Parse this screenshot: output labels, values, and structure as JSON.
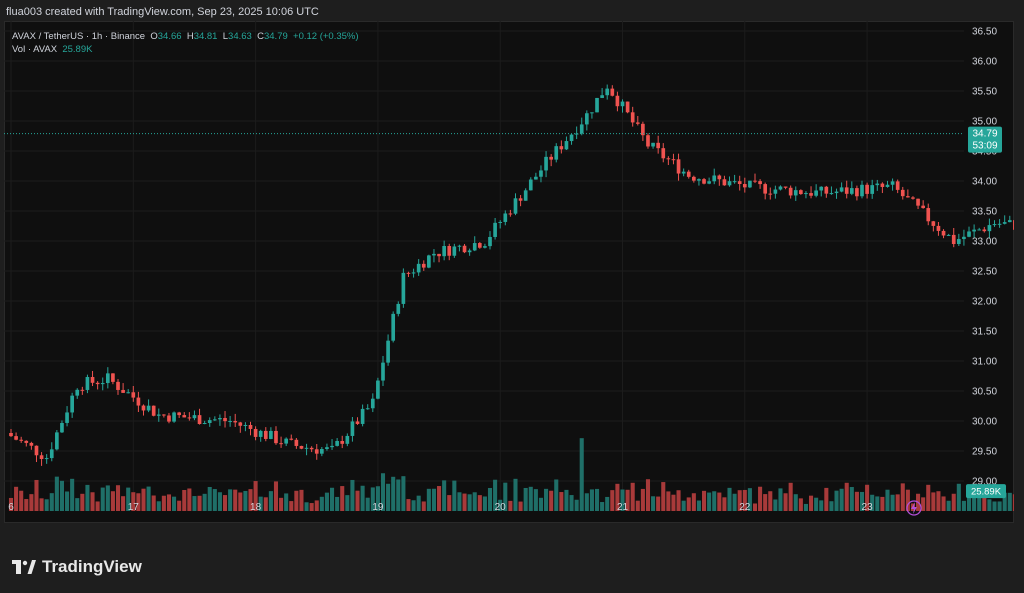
{
  "header": {
    "text": "flua003 created with TradingView.com, Sep 23, 2025 10:06 UTC"
  },
  "legend": {
    "symbol": "AVAX / TetherUS · 1h · Binance",
    "o_label": "O",
    "o": "34.66",
    "h_label": "H",
    "h": "34.81",
    "l_label": "L",
    "l": "34.63",
    "c_label": "C",
    "c": "34.79",
    "change": "+0.12 (+0.35%)",
    "vol_label": "Vol · AVAX",
    "vol": "25.89K"
  },
  "price_badge": {
    "price": "34.79",
    "countdown": "53:09"
  },
  "volume_badge": "25.89K",
  "logo_text": "TradingView",
  "colors": {
    "up": "#26a69a",
    "down": "#ef5350",
    "bg": "#0f0f0f",
    "up_vol": "#1f6f68",
    "down_vol": "#a83a3a"
  },
  "chart_data": {
    "type": "candlestick",
    "ylim": [
      28.5,
      36.6
    ],
    "y_ticks": [
      "29.00",
      "29.50",
      "30.00",
      "30.50",
      "31.00",
      "31.50",
      "32.00",
      "32.50",
      "33.00",
      "33.50",
      "34.00",
      "34.50",
      "35.00",
      "35.50",
      "36.00",
      "36.50"
    ],
    "x_ticks": [
      {
        "label": "6",
        "day": 0
      },
      {
        "label": "17",
        "day": 1
      },
      {
        "label": "18",
        "day": 2
      },
      {
        "label": "19",
        "day": 3
      },
      {
        "label": "20",
        "day": 4
      },
      {
        "label": "21",
        "day": 5
      },
      {
        "label": "22",
        "day": 6
      },
      {
        "label": "23",
        "day": 7
      }
    ],
    "waypoints": [
      [
        0,
        29.8
      ],
      [
        8,
        29.4
      ],
      [
        14,
        30.6
      ],
      [
        20,
        30.7
      ],
      [
        30,
        30.1
      ],
      [
        44,
        30.0
      ],
      [
        56,
        29.6
      ],
      [
        64,
        29.5
      ],
      [
        72,
        30.3
      ],
      [
        78,
        32.4
      ],
      [
        84,
        32.8
      ],
      [
        94,
        33.0
      ],
      [
        106,
        34.3
      ],
      [
        114,
        35.1
      ],
      [
        118,
        35.6
      ],
      [
        126,
        34.6
      ],
      [
        134,
        34.1
      ],
      [
        146,
        33.9
      ],
      [
        160,
        33.8
      ],
      [
        174,
        33.9
      ],
      [
        186,
        33.0
      ],
      [
        194,
        33.3
      ],
      [
        206,
        33.2
      ],
      [
        218,
        32.9
      ],
      [
        236,
        33.1
      ],
      [
        246,
        32.0
      ],
      [
        252,
        31.2
      ],
      [
        258,
        30.5
      ],
      [
        270,
        31.6
      ],
      [
        276,
        31.3
      ],
      [
        282,
        31.8
      ],
      [
        288,
        32.5
      ],
      [
        294,
        33.5
      ],
      [
        298,
        32.9
      ],
      [
        302,
        34.8
      ],
      [
        306,
        35.5
      ],
      [
        310,
        34.5
      ]
    ],
    "volume_max_k": 150,
    "volume_spikes": [
      {
        "i": 112,
        "v": 95
      },
      {
        "i": 256,
        "v": 70
      },
      {
        "i": 264,
        "v": 130
      },
      {
        "i": 296,
        "v": 120
      },
      {
        "i": 301,
        "v": 150
      },
      {
        "i": 303,
        "v": 95
      }
    ],
    "last": {
      "open": 34.66,
      "high": 34.81,
      "low": 34.63,
      "close": 34.79,
      "volume_k": 25.89
    }
  }
}
